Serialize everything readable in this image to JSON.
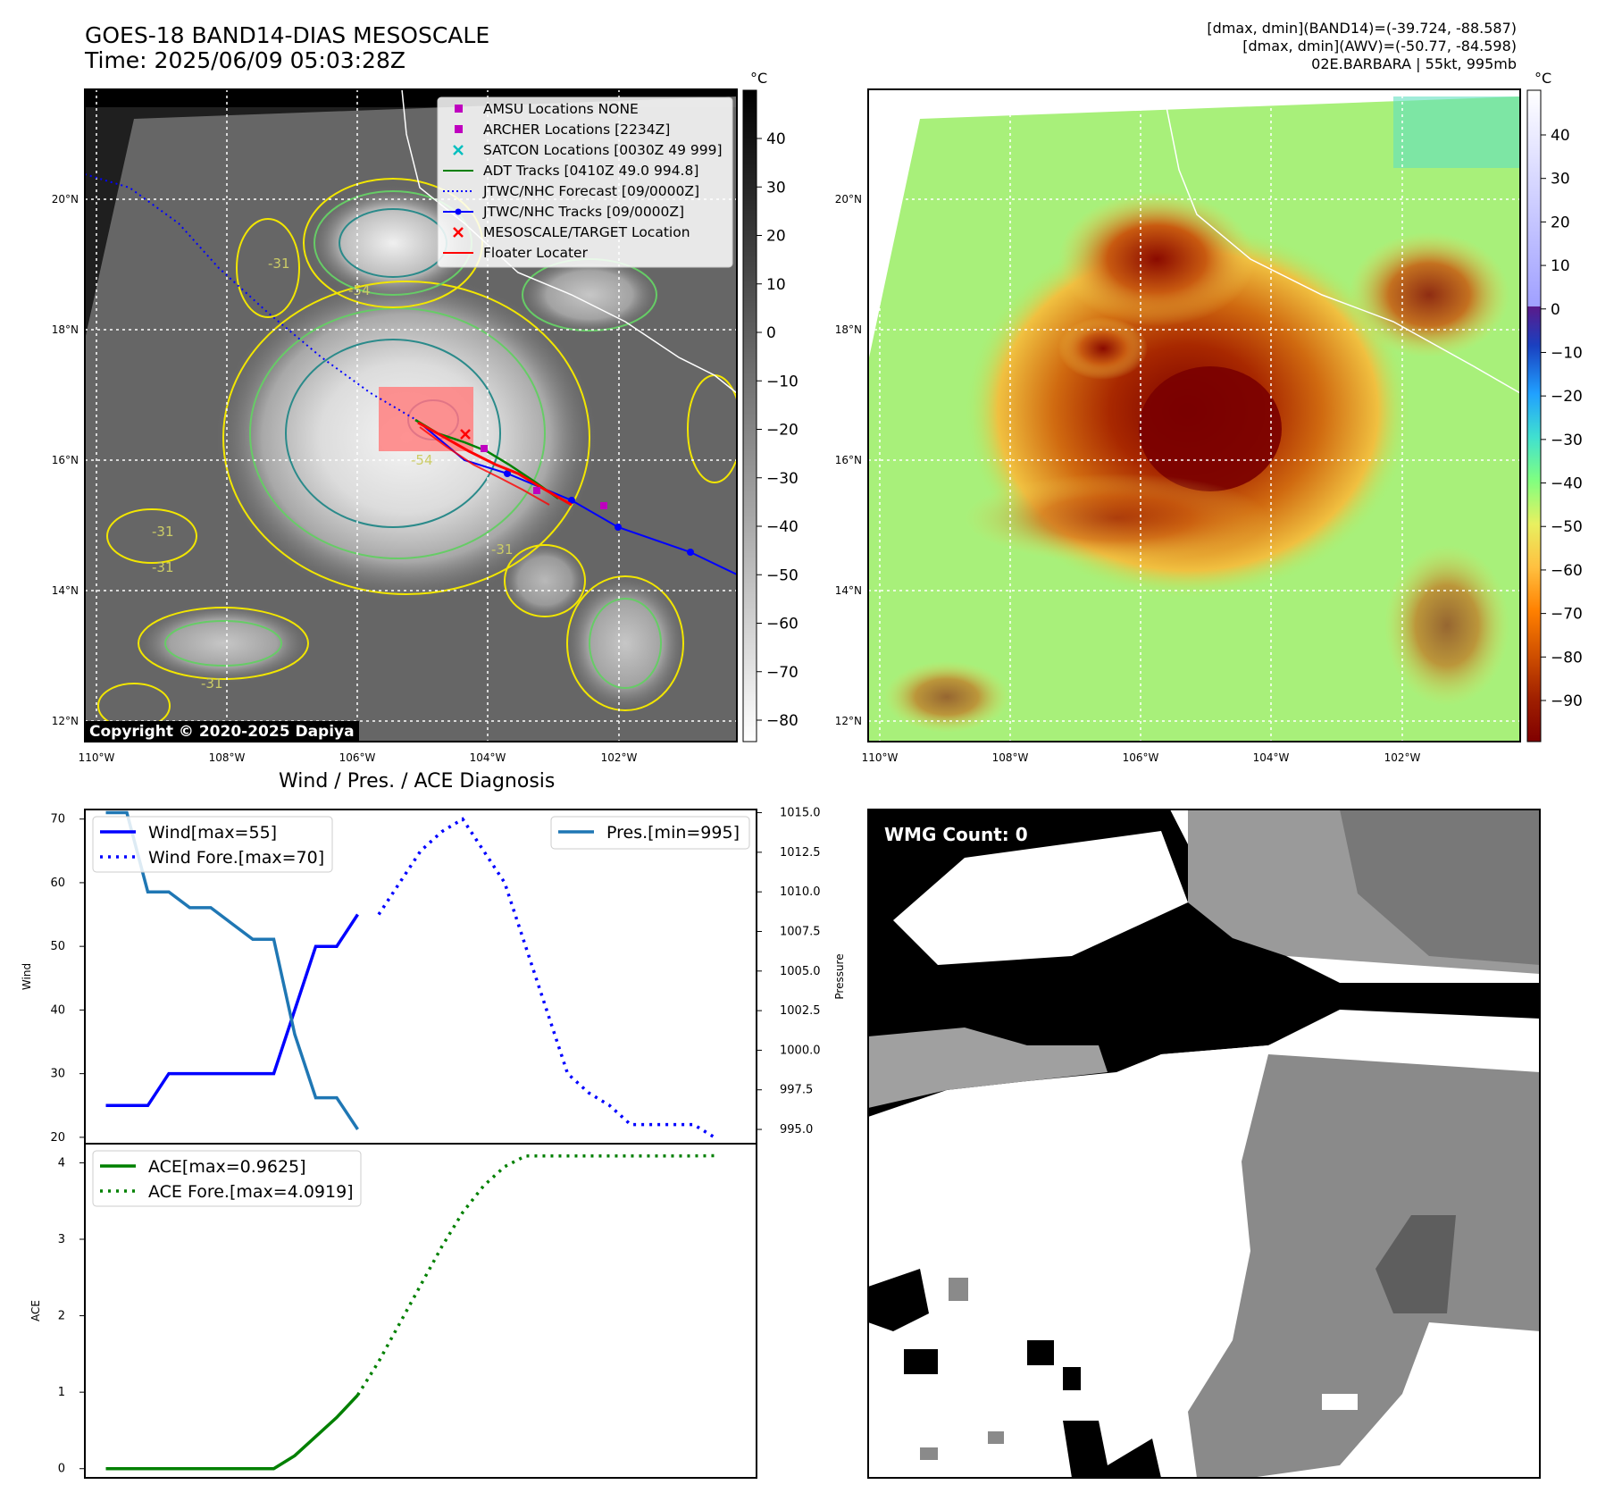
{
  "header": {
    "title_line1": "GOES-18 BAND14-DIAS MESOSCALE",
    "title_line2": "Time: 2025/06/09 05:03:28Z",
    "stats_line1": "[dmax, dmin](BAND14)=(-39.724, -88.587)",
    "stats_line2": "[dmax, dmin](AWV)=(-50.77, -84.598)",
    "stats_line3": "02E.BARBARA | 55kt, 995mb"
  },
  "colors": {
    "wind": "#0000ff",
    "pressure": "#1f77b4",
    "ace": "#008000",
    "contour_yellow": "#f2e600",
    "contour_green": "#66cc66",
    "contour_teal": "#2a8a8a",
    "awv_cold": "#8b0000",
    "awv_warm": "#7cfc7c"
  },
  "maps": {
    "lon_labels": [
      "110°W",
      "108°W",
      "106°W",
      "104°W",
      "102°W"
    ],
    "lat_labels": [
      "20°N",
      "18°N",
      "16°N",
      "14°N",
      "12°N"
    ],
    "copyright": "Copyright © 2020-2025 Dapiya",
    "legend": [
      {
        "label": "AMSU Locations NONE",
        "marker": "square",
        "color": "#bf00bf"
      },
      {
        "label": "ARCHER Locations [2234Z]",
        "marker": "square",
        "color": "#bf00bf"
      },
      {
        "label": "SATCON Locations [0030Z 49 999]",
        "marker": "x",
        "color": "#00bfbf"
      },
      {
        "label": "ADT Tracks [0410Z 49.0 994.8]",
        "marker": "line",
        "color": "#008000"
      },
      {
        "label": "JTWC/NHC Forecast [09/0000Z]",
        "marker": "dotted",
        "color": "#0000ff"
      },
      {
        "label": "JTWC/NHC Tracks [09/0000Z]",
        "marker": "line-dot",
        "color": "#0000ff"
      },
      {
        "label": "MESOSCALE/TARGET Location",
        "marker": "x",
        "color": "#ff0000"
      },
      {
        "label": "Floater Locater",
        "marker": "line",
        "color": "#ff0000"
      }
    ],
    "contour_labels": [
      "-31",
      "-31",
      "-54",
      "-31",
      "-31",
      "-54",
      "-31"
    ],
    "colorbar1": {
      "unit": "°C",
      "ticks": [
        "40",
        "30",
        "20",
        "10",
        "0",
        "−10",
        "−20",
        "−30",
        "−40",
        "−50",
        "−60",
        "−70",
        "−80"
      ]
    },
    "colorbar2": {
      "unit": "°C",
      "ticks": [
        "40",
        "30",
        "20",
        "10",
        "0",
        "−10",
        "−20",
        "−30",
        "−40",
        "−50",
        "−60",
        "−70",
        "−80",
        "−90"
      ]
    }
  },
  "diagnosis": {
    "title": "Wind / Pres. / ACE Diagnosis",
    "wmg_count": "WMG Count: 0"
  },
  "chart_data": [
    {
      "type": "line",
      "title": "Wind / Pres. / ACE Diagnosis",
      "ylabel": "Wind",
      "y2label": "Pressure",
      "ylim": [
        19,
        71.5
      ],
      "y2lim": [
        994.1,
        1015.2
      ],
      "yticks": [
        "20",
        "30",
        "40",
        "50",
        "60",
        "70"
      ],
      "y2ticks": [
        "995.0",
        "997.5",
        "1000.0",
        "1002.5",
        "1005.0",
        "1007.5",
        "1010.0",
        "1012.5",
        "1015.0"
      ],
      "xlim": [
        -1,
        31
      ],
      "series": [
        {
          "name": "Wind[max=55]",
          "axis": "left",
          "style": "solid",
          "color": "#0000ff",
          "x": [
            0,
            1,
            2,
            3,
            4,
            5,
            6,
            7,
            8,
            9,
            10,
            11,
            12,
            13
          ],
          "values": [
            25,
            25,
            25,
            30,
            30,
            30,
            30,
            30,
            30,
            40,
            50,
            50,
            55,
            null
          ]
        },
        {
          "name": "Wind Fore.[max=70]",
          "axis": "left",
          "style": "dotted",
          "color": "#0000ff",
          "x": [
            13,
            14,
            15,
            16,
            17,
            18,
            19,
            20,
            21,
            22,
            23,
            24,
            25,
            26,
            27,
            28,
            29,
            30
          ],
          "values": [
            55,
            60,
            65,
            68,
            70,
            65,
            60,
            50,
            40,
            30,
            27,
            25,
            22,
            22,
            22,
            22,
            20,
            null
          ]
        },
        {
          "name": "Pres.[min=995]",
          "axis": "right",
          "style": "solid",
          "color": "#1f77b4",
          "x": [
            0,
            1,
            2,
            3,
            4,
            5,
            6,
            7,
            8,
            9,
            10,
            11,
            12
          ],
          "values": [
            1015,
            1015,
            1010,
            1010,
            1009,
            1009,
            1008,
            1007,
            1007,
            1001,
            997,
            997,
            995
          ]
        }
      ]
    },
    {
      "type": "line",
      "ylabel": "ACE",
      "ylim": [
        -0.12,
        4.25
      ],
      "yticks": [
        "0",
        "1",
        "2",
        "3",
        "4"
      ],
      "xlim": [
        -1,
        31
      ],
      "series": [
        {
          "name": "ACE[max=0.9625]",
          "style": "solid",
          "color": "#008000",
          "x": [
            0,
            1,
            2,
            3,
            4,
            5,
            6,
            7,
            8,
            9,
            10,
            11,
            12,
            13
          ],
          "values": [
            0,
            0,
            0,
            0,
            0,
            0,
            0,
            0,
            0,
            0.17,
            0.42,
            0.67,
            0.9625,
            null
          ]
        },
        {
          "name": "ACE Fore.[max=4.0919]",
          "style": "dotted",
          "color": "#008000",
          "x": [
            12,
            13,
            14,
            15,
            16,
            17,
            18,
            19,
            20,
            21,
            22,
            23,
            24,
            25,
            26,
            27,
            28,
            29,
            30
          ],
          "values": [
            0.9625,
            1.4,
            1.9,
            2.4,
            2.9,
            3.35,
            3.7,
            3.95,
            4.09,
            4.09,
            4.09,
            4.09,
            4.09,
            4.09,
            4.09,
            4.09,
            4.09,
            4.0919,
            null
          ]
        }
      ]
    }
  ]
}
